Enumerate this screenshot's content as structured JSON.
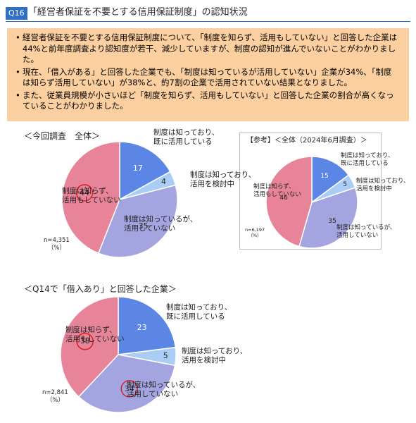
{
  "header": {
    "badge": "Q16",
    "title": "「経営者保証を不要とする信用保証制度」の認知状況"
  },
  "bullets": [
    "経営者保証を不要とする信用保証制度について、「制度を知らず、活用もしていない」と回答した企業は44%と前年度調査より認知度が若干、減少していますが、制度の認知が進んでいないことがわかりました。",
    "現在、「借入がある」と回答した企業でも、「制度は知っているが活用していない」企業が34%、「制度は知らず活用していない」が38%と、約7割の企業で活用されていない結果となりました。",
    "また、従業員規模が小さいほど「制度を知らず、活用もしていない」と回答した企業の割合が高くなっていることがわかりました。"
  ],
  "chart_data": [
    {
      "type": "pie",
      "title": "＜今回調査　全体＞",
      "note": "n=4,351\n（%）",
      "categories": [
        "制度は知っており、\n既に活用している",
        "制度は知っており、\n活用を検討中",
        "制度は知っているが、\n活用していない",
        "制度は知らず、\n活用もしていない"
      ],
      "values": [
        17,
        4,
        35,
        44
      ],
      "colors": [
        "#5b86e5",
        "#a9cdf5",
        "#a4a4e0",
        "#e8849a"
      ],
      "highlight": [
        3
      ]
    },
    {
      "type": "pie",
      "title": "【参考】＜全体（2024年6月調査）＞",
      "note": "n=6,197\n（%）",
      "categories": [
        "制度は知っており、\n既に活用している",
        "制度は知っており、\n活用を検討中",
        "制度は知っているが、\n活用していない",
        "制度は知らず、\n活用もしていない"
      ],
      "values": [
        15,
        5,
        35,
        46
      ],
      "colors": [
        "#5b86e5",
        "#a9cdf5",
        "#a4a4e0",
        "#e8849a"
      ],
      "highlight": []
    },
    {
      "type": "pie",
      "title": "＜Q14で「借入あり」と回答した企業＞",
      "note": "n=2,841\n（%）",
      "categories": [
        "制度は知っており、\n既に活用している",
        "制度は知っており、\n活用を検討中",
        "制度は知っているが、\n活用していない",
        "制度は知らず、\n活用もしていない"
      ],
      "values": [
        23,
        5,
        34,
        38
      ],
      "colors": [
        "#5b86e5",
        "#a9cdf5",
        "#a4a4e0",
        "#e8849a"
      ],
      "highlight": [
        2,
        3
      ]
    }
  ]
}
